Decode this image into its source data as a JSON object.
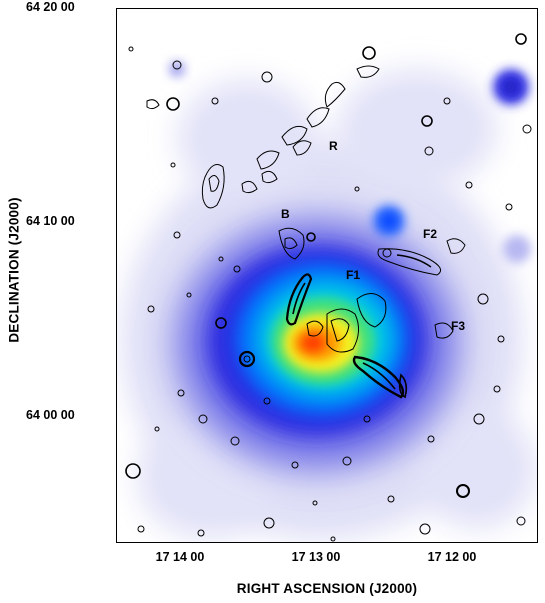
{
  "figure": {
    "y_ticks": [
      "64 20 00",
      "64 10 00",
      "64 00 00"
    ],
    "x_ticks": [
      "17 14 00",
      "17 13 00",
      "17 12 00"
    ],
    "x_axis_title": "RIGHT ASCENSION  (J2000)",
    "y_axis_title": "DECLINATION  (J2000)",
    "region_labels": [
      "R",
      "B",
      "F1",
      "F2",
      "F3"
    ],
    "colormap": [
      "#ffffff",
      "#c9c9f2",
      "#7070e6",
      "#2a2ae0",
      "#0080ff",
      "#00d0e0",
      "#3ee07a",
      "#f2f21a",
      "#ff9a00",
      "#ff3000"
    ],
    "contour_color": "#000000"
  }
}
